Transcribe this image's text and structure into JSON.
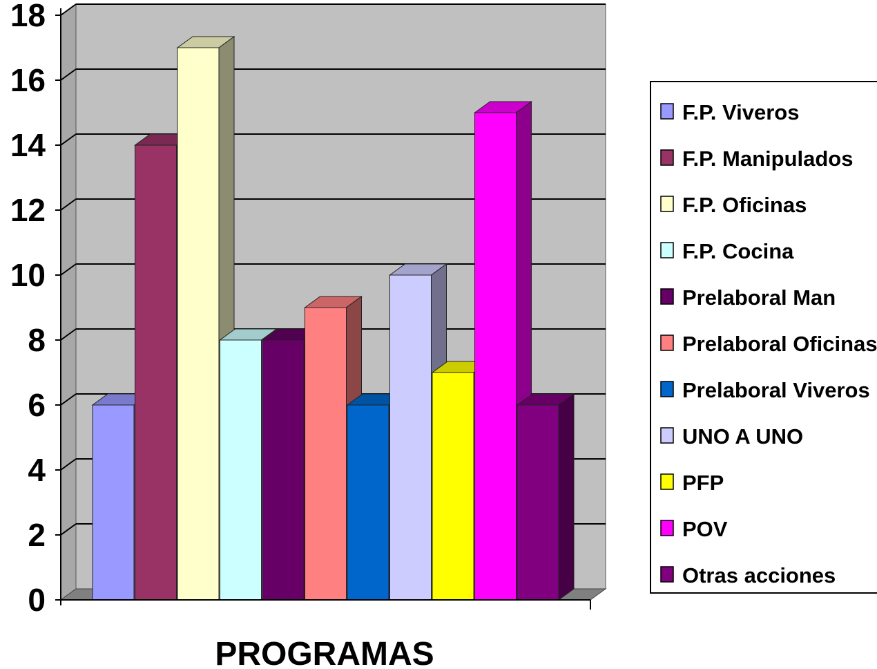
{
  "chart_data": {
    "type": "bar",
    "title": "",
    "xlabel": "PROGRAMAS",
    "ylabel": "",
    "ylim": [
      0,
      18
    ],
    "yticks": [
      0,
      2,
      4,
      6,
      8,
      10,
      12,
      14,
      16,
      18
    ],
    "grid": true,
    "legend_position": "right",
    "series": [
      {
        "name": "F.P. Viveros",
        "values": [
          6
        ],
        "color": "#9999ff"
      },
      {
        "name": "F.P. Manipulados",
        "values": [
          14
        ],
        "color": "#993366"
      },
      {
        "name": "F.P. Oficinas",
        "values": [
          17
        ],
        "color": "#ffffcc"
      },
      {
        "name": "F.P. Cocina",
        "values": [
          8
        ],
        "color": "#ccffff"
      },
      {
        "name": "Prelaboral Man",
        "values": [
          8
        ],
        "color": "#660066"
      },
      {
        "name": "Prelaboral Oficinas",
        "values": [
          9
        ],
        "color": "#ff8080"
      },
      {
        "name": "Prelaboral Viveros",
        "values": [
          6
        ],
        "color": "#0066cc"
      },
      {
        "name": "UNO A UNO",
        "values": [
          10
        ],
        "color": "#ccccff"
      },
      {
        "name": "PFP",
        "values": [
          7
        ],
        "color": "#ffff00"
      },
      {
        "name": "POV",
        "values": [
          15
        ],
        "color": "#ff00ff"
      },
      {
        "name": "Otras acciones",
        "values": [
          6
        ],
        "color": "#800080"
      }
    ]
  }
}
